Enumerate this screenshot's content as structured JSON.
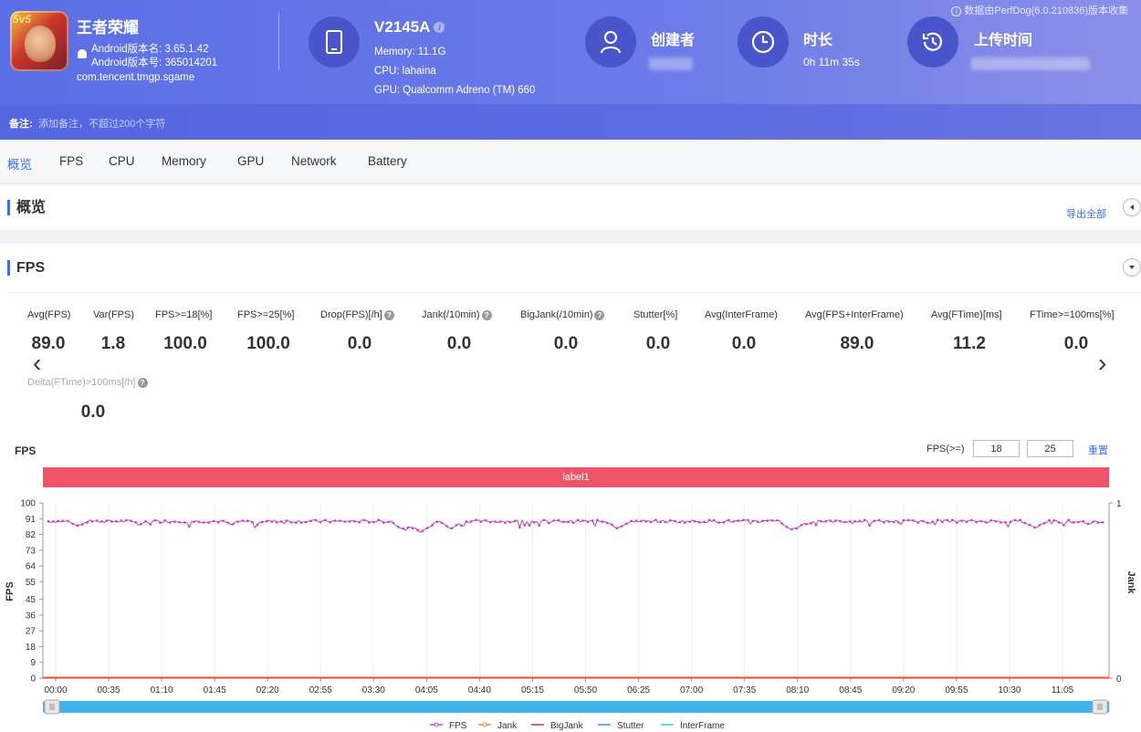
{
  "header": {
    "source_note": "数据由PerfDog(6.0.210836)版本收集",
    "app": {
      "name": "王者荣耀",
      "version_name": "Android版本名: 3.65.1.42",
      "version_code": "Android版本号: 365014201",
      "package": "com.tencent.tmgp.sgame",
      "icon_badge": "5v5"
    },
    "device": {
      "model": "V2145A",
      "memory": "Memory: 11.1G",
      "cpu": "CPU: lahaina",
      "gpu": "GPU: Qualcomm Adreno (TM) 660"
    },
    "creator_label": "创建者",
    "duration_label": "时长",
    "duration_value": "0h 11m 35s",
    "upload_label": "上传时间",
    "remark_label": "备注:",
    "remark_placeholder": "添加备注，不超过200个字符"
  },
  "tabs": [
    "概览",
    "FPS",
    "CPU",
    "Memory",
    "GPU",
    "Network",
    "Battery"
  ],
  "overview": {
    "title": "概览",
    "export_label": "导出全部"
  },
  "fps_section": {
    "title": "FPS",
    "metrics": [
      {
        "label": "Avg(FPS)",
        "value": "89.0"
      },
      {
        "label": "Var(FPS)",
        "value": "1.8"
      },
      {
        "label": "FPS>=18[%]",
        "value": "100.0"
      },
      {
        "label": "FPS>=25[%]",
        "value": "100.0"
      },
      {
        "label": "Drop(FPS)[/h]",
        "value": "0.0"
      },
      {
        "label": "Jank(/10min)",
        "value": "0.0"
      },
      {
        "label": "BigJank(/10min)",
        "value": "0.0"
      },
      {
        "label": "Stutter[%]",
        "value": "0.0"
      },
      {
        "label": "Avg(InterFrame)",
        "value": "0.0"
      },
      {
        "label": "Avg(FPS+InterFrame)",
        "value": "89.0"
      },
      {
        "label": "Avg(FTime)[ms]",
        "value": "11.2"
      },
      {
        "label": "FTime>=100ms[%]",
        "value": "0.0"
      },
      {
        "label": "Delta(FTime)>100ms[/h]",
        "value": "0.0"
      }
    ],
    "chart_label": "FPS",
    "threshold_label": "FPS(>=)",
    "threshold_1": "18",
    "threshold_2": "25",
    "reset_label": "重置",
    "band_label": "label1"
  },
  "chart_data": {
    "type": "line",
    "title": "FPS",
    "ylabel": "FPS",
    "y2label": "Jank",
    "ylim": [
      0,
      100
    ],
    "y2lim": [
      0,
      1
    ],
    "yticks": [
      100,
      91,
      82,
      73,
      64,
      55,
      45,
      36,
      27,
      18,
      9,
      0
    ],
    "xticks": [
      "00:00",
      "00:35",
      "01:10",
      "01:45",
      "02:20",
      "02:55",
      "03:30",
      "04:05",
      "04:40",
      "05:15",
      "05:50",
      "06:25",
      "07:00",
      "07:35",
      "08:10",
      "08:45",
      "09:20",
      "09:55",
      "10:30",
      "11:05"
    ],
    "duration_seconds": 695,
    "series": [
      {
        "name": "FPS",
        "color": "#c93fc4",
        "baseline": 89.5,
        "dips": [
          [
            20,
            86
          ],
          [
            60,
            87
          ],
          [
            120,
            87
          ],
          [
            235,
            84
          ],
          [
            245,
            83
          ],
          [
            265,
            85
          ],
          [
            375,
            85
          ],
          [
            490,
            84
          ],
          [
            500,
            87
          ],
          [
            580,
            88
          ],
          [
            650,
            85
          ],
          [
            685,
            87
          ]
        ]
      },
      {
        "name": "Jank",
        "color": "#f08a3c",
        "values": [
          0
        ]
      },
      {
        "name": "BigJank",
        "color": "#d9342b",
        "values": [
          0
        ]
      },
      {
        "name": "Stutter",
        "color": "#4a86e8",
        "values": [
          0
        ]
      },
      {
        "name": "InterFrame",
        "color": "#3ec5e0",
        "values": [
          0
        ]
      }
    ]
  }
}
